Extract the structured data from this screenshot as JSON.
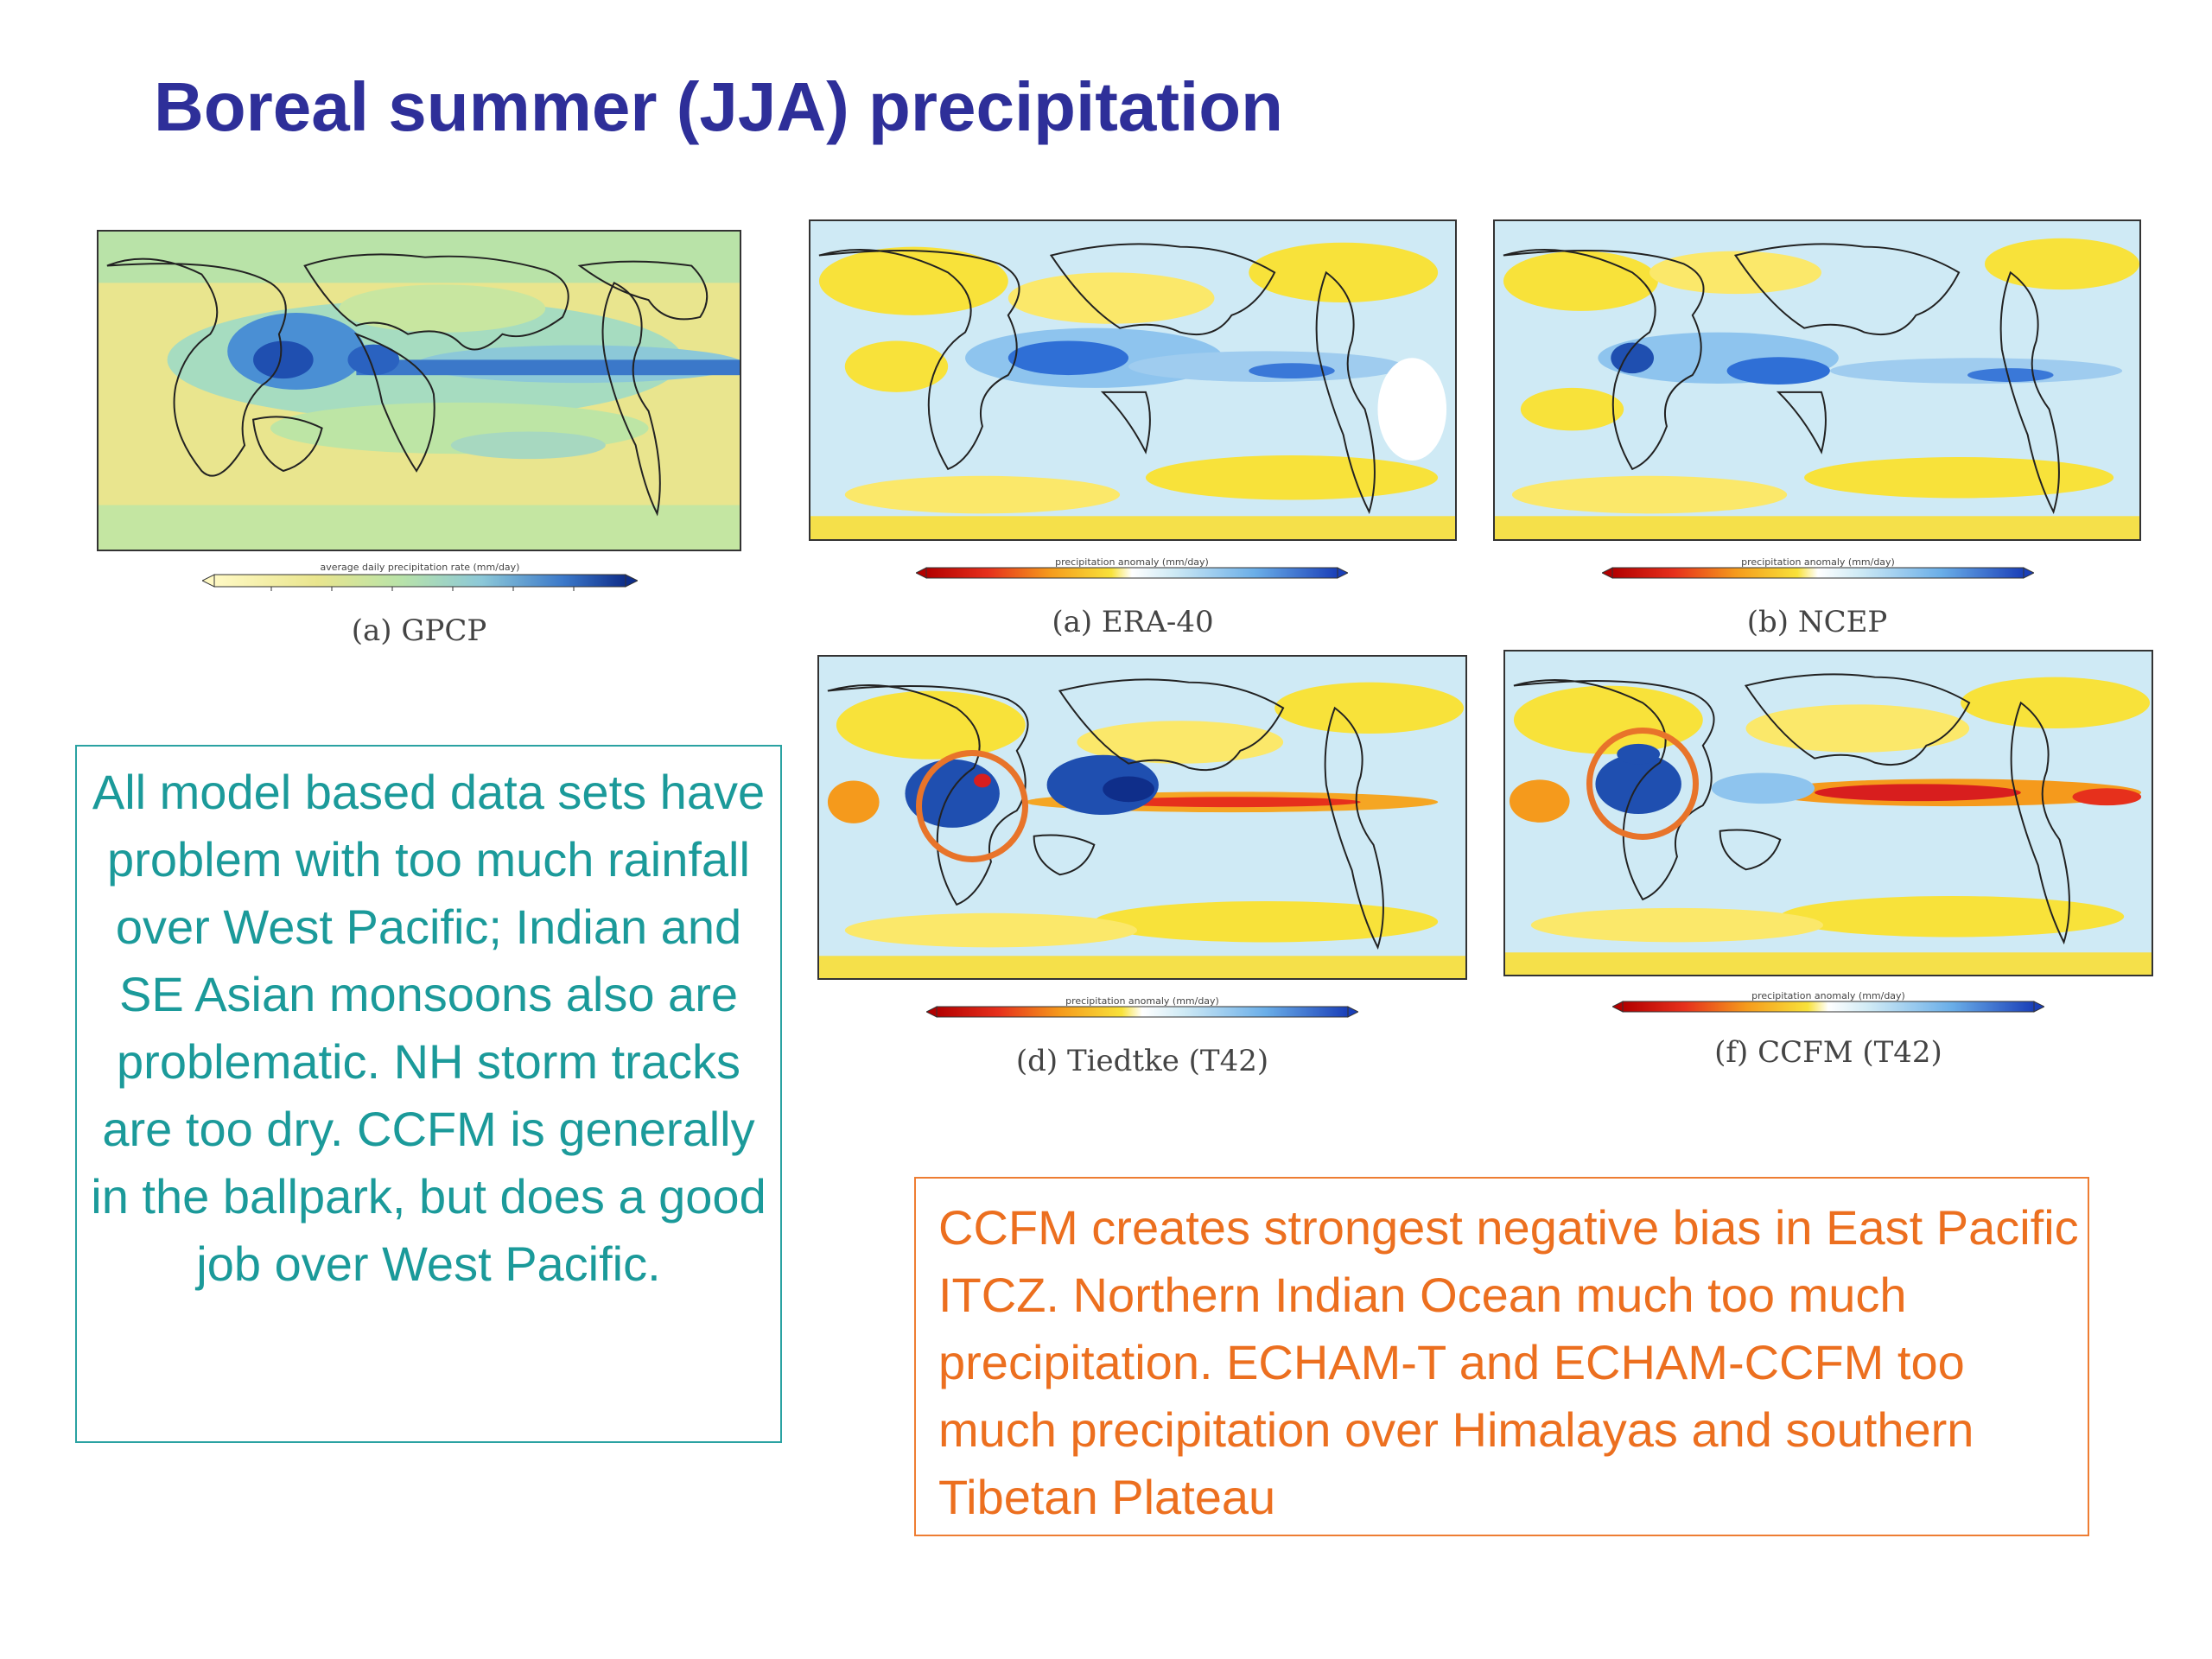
{
  "slide": {
    "title": "Boreal summer (JJA) precipitation"
  },
  "panels": [
    {
      "id": "gpcp",
      "caption": "(a) GPCP",
      "colorbar_label": "average daily precipitation rate  (mm/day)",
      "palette": "precip-rate"
    },
    {
      "id": "era40",
      "caption": "(a) ERA-40",
      "colorbar_label": "precipitation anomaly  (mm/day)",
      "palette": "anomaly"
    },
    {
      "id": "ncep",
      "caption": "(b) NCEP",
      "colorbar_label": "precipitation anomaly  (mm/day)",
      "palette": "anomaly"
    },
    {
      "id": "tiedtke",
      "caption": "(d) Tiedtke (T42)",
      "colorbar_label": "precipitation anomaly  (mm/day)",
      "palette": "anomaly"
    },
    {
      "id": "ccfm",
      "caption": "(f) CCFM (T42)",
      "colorbar_label": "precipitation anomaly  (mm/day)",
      "palette": "anomaly"
    }
  ],
  "notes": {
    "teal": "All model based data sets have problem with too much rainfall over West Pacific; Indian and SE Asian monsoons also are problematic. NH storm tracks  are too dry. CCFM is generally in the ballpark, but does a good job over West Pacific.",
    "orange": "CCFM creates strongest negative bias in East Pacific ITCZ. Northern Indian Ocean much too much precipitation. ECHAM-T and ECHAM-CCFM too much precipitation over Himalayas and southern Tibetan Plateau"
  },
  "colors": {
    "title": "#2e2f99",
    "teal_text": "#1b9a9a",
    "orange_text": "#ec6f1f",
    "highlight_circle": "#e8742a"
  }
}
